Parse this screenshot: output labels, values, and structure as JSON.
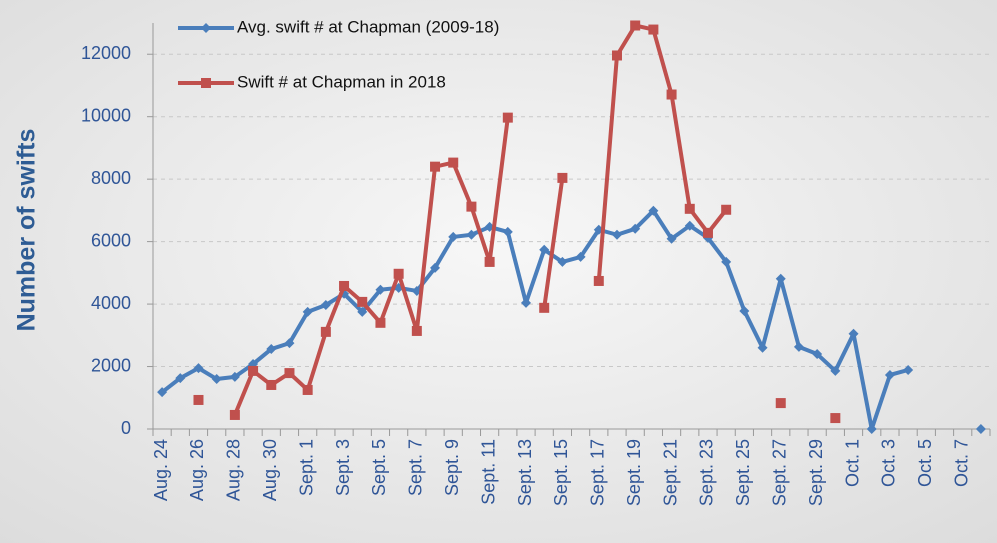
{
  "chart_data": {
    "type": "line",
    "y_label": "Number of swifts",
    "categories": [
      "Aug. 24",
      null,
      "Aug. 26",
      null,
      "Aug. 28",
      null,
      "Aug. 30",
      null,
      "Sept. 1",
      null,
      "Sept. 3",
      null,
      "Sept. 5",
      null,
      "Sept. 7",
      null,
      "Sept. 9",
      null,
      "Sept. 11",
      null,
      "Sept. 13",
      null,
      "Sept. 15",
      null,
      "Sept. 17",
      null,
      "Sept. 19",
      null,
      "Sept. 21",
      null,
      "Sept. 23",
      null,
      "Sept. 25",
      null,
      "Sept. 27",
      null,
      "Sept. 29",
      null,
      "Oct. 1",
      null,
      "Oct. 3",
      null,
      "Oct. 5",
      null,
      "Oct. 7",
      null
    ],
    "series": [
      {
        "name": "Avg. swift # at Chapman (2009-18)",
        "color": "#4a7ebb",
        "marker": "diamond",
        "values": [
          1180,
          1630,
          1950,
          1600,
          1670,
          2080,
          2560,
          2750,
          3750,
          3970,
          4330,
          3750,
          4460,
          4520,
          4420,
          5160,
          6150,
          6220,
          6470,
          6310,
          4040,
          5740,
          5350,
          5510,
          6380,
          6220,
          6410,
          6990,
          6090,
          6510,
          6120,
          5350,
          3780,
          2600,
          4810,
          2630,
          2400,
          1860,
          3050,
          0,
          1730,
          1890,
          null,
          null,
          null,
          0
        ]
      },
      {
        "name": "Swift # at Chapman in 2018",
        "color": "#c0504d",
        "marker": "square",
        "values": [
          null,
          null,
          930,
          null,
          450,
          1860,
          1410,
          1790,
          1250,
          3110,
          4580,
          4070,
          3400,
          4970,
          3140,
          8400,
          8530,
          7120,
          5350,
          9970,
          null,
          3880,
          8040,
          null,
          4740,
          11960,
          12920,
          12790,
          10710,
          7050,
          6280,
          7020,
          null,
          null,
          830,
          null,
          null,
          350,
          null,
          null,
          null,
          null,
          null,
          null,
          null,
          null
        ]
      }
    ],
    "ylim": [
      0,
      13000
    ],
    "yticks": [
      0,
      2000,
      4000,
      6000,
      8000,
      10000,
      12000
    ],
    "grid": true,
    "legend": "upper left"
  }
}
